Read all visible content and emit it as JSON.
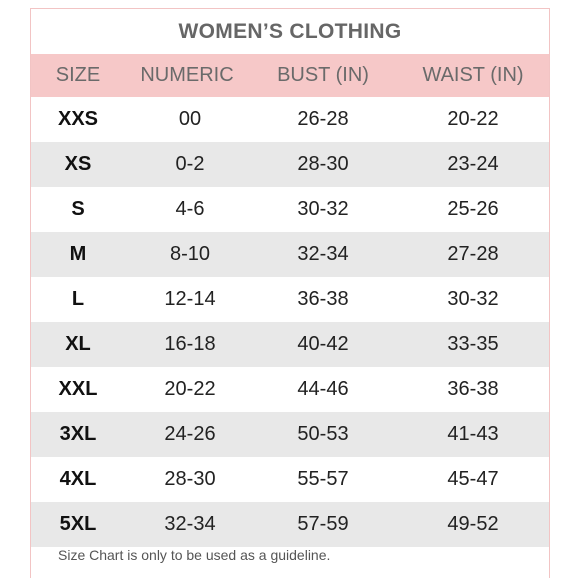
{
  "table": {
    "title": "WOMEN’S CLOTHING",
    "columns": [
      "SIZE",
      "NUMERIC",
      "BUST (IN)",
      "WAIST (IN)"
    ],
    "rows": [
      {
        "size": "XXS",
        "numeric": "00",
        "bust": "26-28",
        "waist": "20-22"
      },
      {
        "size": "XS",
        "numeric": "0-2",
        "bust": "28-30",
        "waist": "23-24"
      },
      {
        "size": "S",
        "numeric": "4-6",
        "bust": "30-32",
        "waist": "25-26"
      },
      {
        "size": "M",
        "numeric": "8-10",
        "bust": "32-34",
        "waist": "27-28"
      },
      {
        "size": "L",
        "numeric": "12-14",
        "bust": "36-38",
        "waist": "30-32"
      },
      {
        "size": "XL",
        "numeric": "16-18",
        "bust": "40-42",
        "waist": "33-35"
      },
      {
        "size": "XXL",
        "numeric": "20-22",
        "bust": "44-46",
        "waist": "36-38"
      },
      {
        "size": "3XL",
        "numeric": "24-26",
        "bust": "50-53",
        "waist": "41-43"
      },
      {
        "size": "4XL",
        "numeric": "28-30",
        "bust": "55-57",
        "waist": "45-47"
      },
      {
        "size": "5XL",
        "numeric": "32-34",
        "bust": "57-59",
        "waist": "49-52"
      }
    ],
    "footnote": "Size Chart is only to be used as a guideline."
  },
  "colors": {
    "header_bg": "#f6c8c8",
    "shaded_row_bg": "#e8e8e8",
    "border": "#f2c4c4"
  }
}
